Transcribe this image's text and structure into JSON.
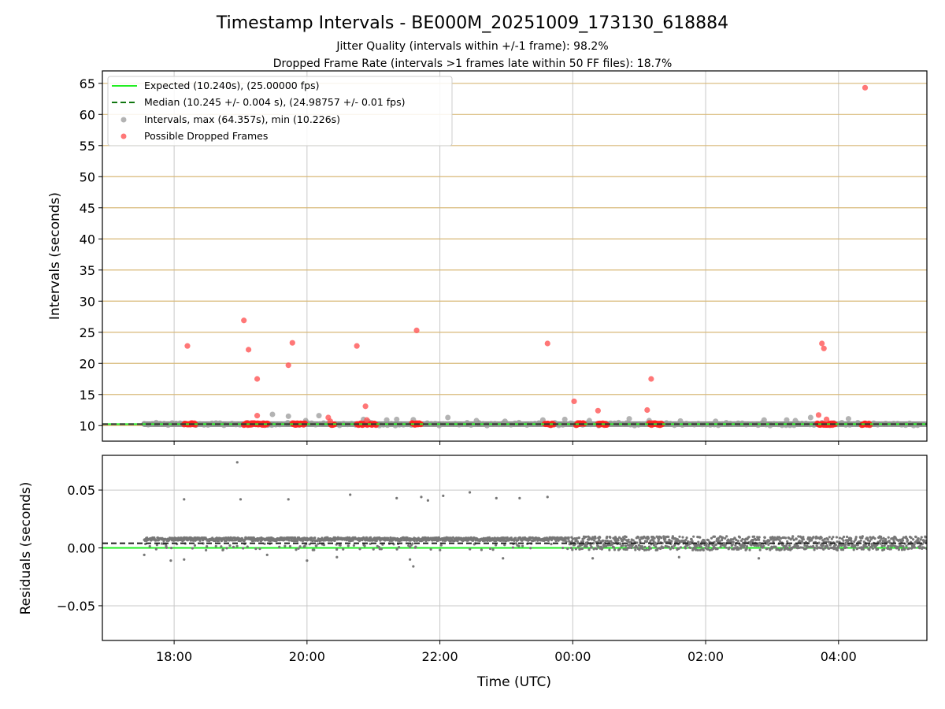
{
  "chart_data": [
    {
      "type": "scatter",
      "title": "Timestamp Intervals - BE000M_20251009_173130_618884",
      "subtitle_lines": [
        "Jitter Quality (intervals within +/-1 frame): 98.2%",
        "Dropped Frame Rate (intervals >1 frames late within 50 FF files): 18.7%"
      ],
      "xlabel": "",
      "ylabel": "Intervals (seconds)",
      "xlim": [
        16.92,
        29.33
      ],
      "ylim": [
        7.5,
        67.0
      ],
      "yticks": [
        10,
        15,
        20,
        25,
        30,
        35,
        40,
        45,
        50,
        55,
        60,
        65
      ],
      "ytick_labels": [
        "10",
        "15",
        "20",
        "25",
        "30",
        "35",
        "40",
        "45",
        "50",
        "55",
        "60",
        "65"
      ],
      "hlines_tan": [
        10,
        15,
        20,
        25,
        30,
        35,
        40,
        45,
        50,
        55,
        60,
        65
      ],
      "expected_value": 10.24,
      "median_value": 10.245,
      "legend": [
        {
          "label": "Expected (10.240s), (25.00000 fps)",
          "kind": "solid-line",
          "color": "#22ee22"
        },
        {
          "label": "Median (10.245 +/- 0.004 s), (24.98757 +/- 0.01 fps)",
          "kind": "dashed-line",
          "color": "#117711"
        },
        {
          "label": "Intervals, max (64.357s), min (10.226s)",
          "kind": "marker",
          "color": "#999999"
        },
        {
          "label": "Possible Dropped Frames",
          "kind": "marker",
          "color": "#ff5555"
        }
      ],
      "band": {
        "x_start": 17.55,
        "x_end": 29.33,
        "y": 10.24
      },
      "gray_points": [
        [
          19.48,
          11.8
        ],
        [
          19.72,
          11.5
        ],
        [
          20.18,
          11.6
        ],
        [
          20.85,
          11.0
        ],
        [
          21.2,
          10.9
        ],
        [
          21.35,
          11.0
        ],
        [
          21.6,
          10.95
        ],
        [
          22.12,
          11.3
        ],
        [
          22.55,
          10.8
        ],
        [
          22.98,
          10.7
        ],
        [
          23.55,
          10.9
        ],
        [
          23.88,
          11.0
        ],
        [
          24.25,
          10.8
        ],
        [
          24.85,
          11.1
        ],
        [
          25.15,
          10.8
        ],
        [
          25.62,
          10.75
        ],
        [
          26.15,
          10.7
        ],
        [
          26.88,
          10.9
        ],
        [
          27.22,
          10.9
        ],
        [
          27.35,
          10.8
        ],
        [
          27.58,
          11.3
        ],
        [
          28.15,
          11.1
        ],
        [
          20.92,
          10.7
        ],
        [
          19.98,
          10.8
        ]
      ],
      "red_points": [
        [
          18.2,
          22.8
        ],
        [
          19.05,
          26.9
        ],
        [
          19.12,
          22.2
        ],
        [
          19.25,
          17.5
        ],
        [
          19.25,
          11.6
        ],
        [
          19.78,
          23.3
        ],
        [
          19.72,
          19.7
        ],
        [
          20.32,
          11.3
        ],
        [
          20.35,
          10.7
        ],
        [
          20.75,
          22.8
        ],
        [
          20.88,
          13.1
        ],
        [
          20.9,
          10.9
        ],
        [
          21.65,
          25.3
        ],
        [
          23.62,
          23.2
        ],
        [
          24.02,
          13.9
        ],
        [
          24.38,
          12.4
        ],
        [
          25.12,
          12.5
        ],
        [
          25.18,
          17.5
        ],
        [
          27.75,
          23.2
        ],
        [
          27.78,
          22.4
        ],
        [
          27.7,
          11.7
        ],
        [
          27.82,
          11.0
        ],
        [
          28.4,
          64.3
        ]
      ],
      "red_clusters": [
        [
          18.15,
          18.32
        ],
        [
          19.05,
          19.42
        ],
        [
          19.78,
          19.98
        ],
        [
          20.35,
          20.42
        ],
        [
          20.75,
          21.05
        ],
        [
          21.58,
          21.72
        ],
        [
          23.58,
          23.72
        ],
        [
          24.05,
          24.18
        ],
        [
          24.38,
          24.52
        ],
        [
          25.15,
          25.35
        ],
        [
          27.68,
          27.95
        ],
        [
          28.35,
          28.48
        ]
      ]
    },
    {
      "type": "scatter",
      "xlabel": "Time (UTC)",
      "ylabel": "Residuals (seconds)",
      "xlim": [
        16.92,
        29.33
      ],
      "ylim": [
        -0.08,
        0.08
      ],
      "yticks": [
        -0.05,
        0.0,
        0.05
      ],
      "ytick_labels": [
        "−0.05",
        "0.00",
        "0.05"
      ],
      "xticks": [
        18,
        20,
        22,
        24,
        26,
        28
      ],
      "xtick_labels": [
        "18:00",
        "20:00",
        "22:00",
        "00:00",
        "02:00",
        "04:00"
      ],
      "expected_value": 0.0,
      "median_value": 0.004,
      "band": {
        "x_start": 17.55,
        "x_end": 29.33
      },
      "outliers": [
        [
          18.95,
          0.074
        ],
        [
          18.15,
          0.042
        ],
        [
          19.0,
          0.042
        ],
        [
          19.72,
          0.042
        ],
        [
          20.65,
          0.046
        ],
        [
          21.35,
          0.043
        ],
        [
          21.72,
          0.044
        ],
        [
          21.82,
          0.041
        ],
        [
          22.05,
          0.045
        ],
        [
          22.45,
          0.048
        ],
        [
          22.85,
          0.043
        ],
        [
          23.2,
          0.043
        ],
        [
          23.62,
          0.044
        ],
        [
          17.55,
          -0.006
        ],
        [
          17.95,
          -0.011
        ],
        [
          18.15,
          -0.01
        ],
        [
          19.4,
          -0.006
        ],
        [
          20.0,
          -0.011
        ],
        [
          20.45,
          -0.008
        ],
        [
          21.55,
          -0.01
        ],
        [
          21.6,
          -0.016
        ],
        [
          22.95,
          -0.009
        ],
        [
          24.3,
          -0.009
        ],
        [
          25.6,
          -0.008
        ],
        [
          26.8,
          -0.009
        ]
      ]
    }
  ]
}
